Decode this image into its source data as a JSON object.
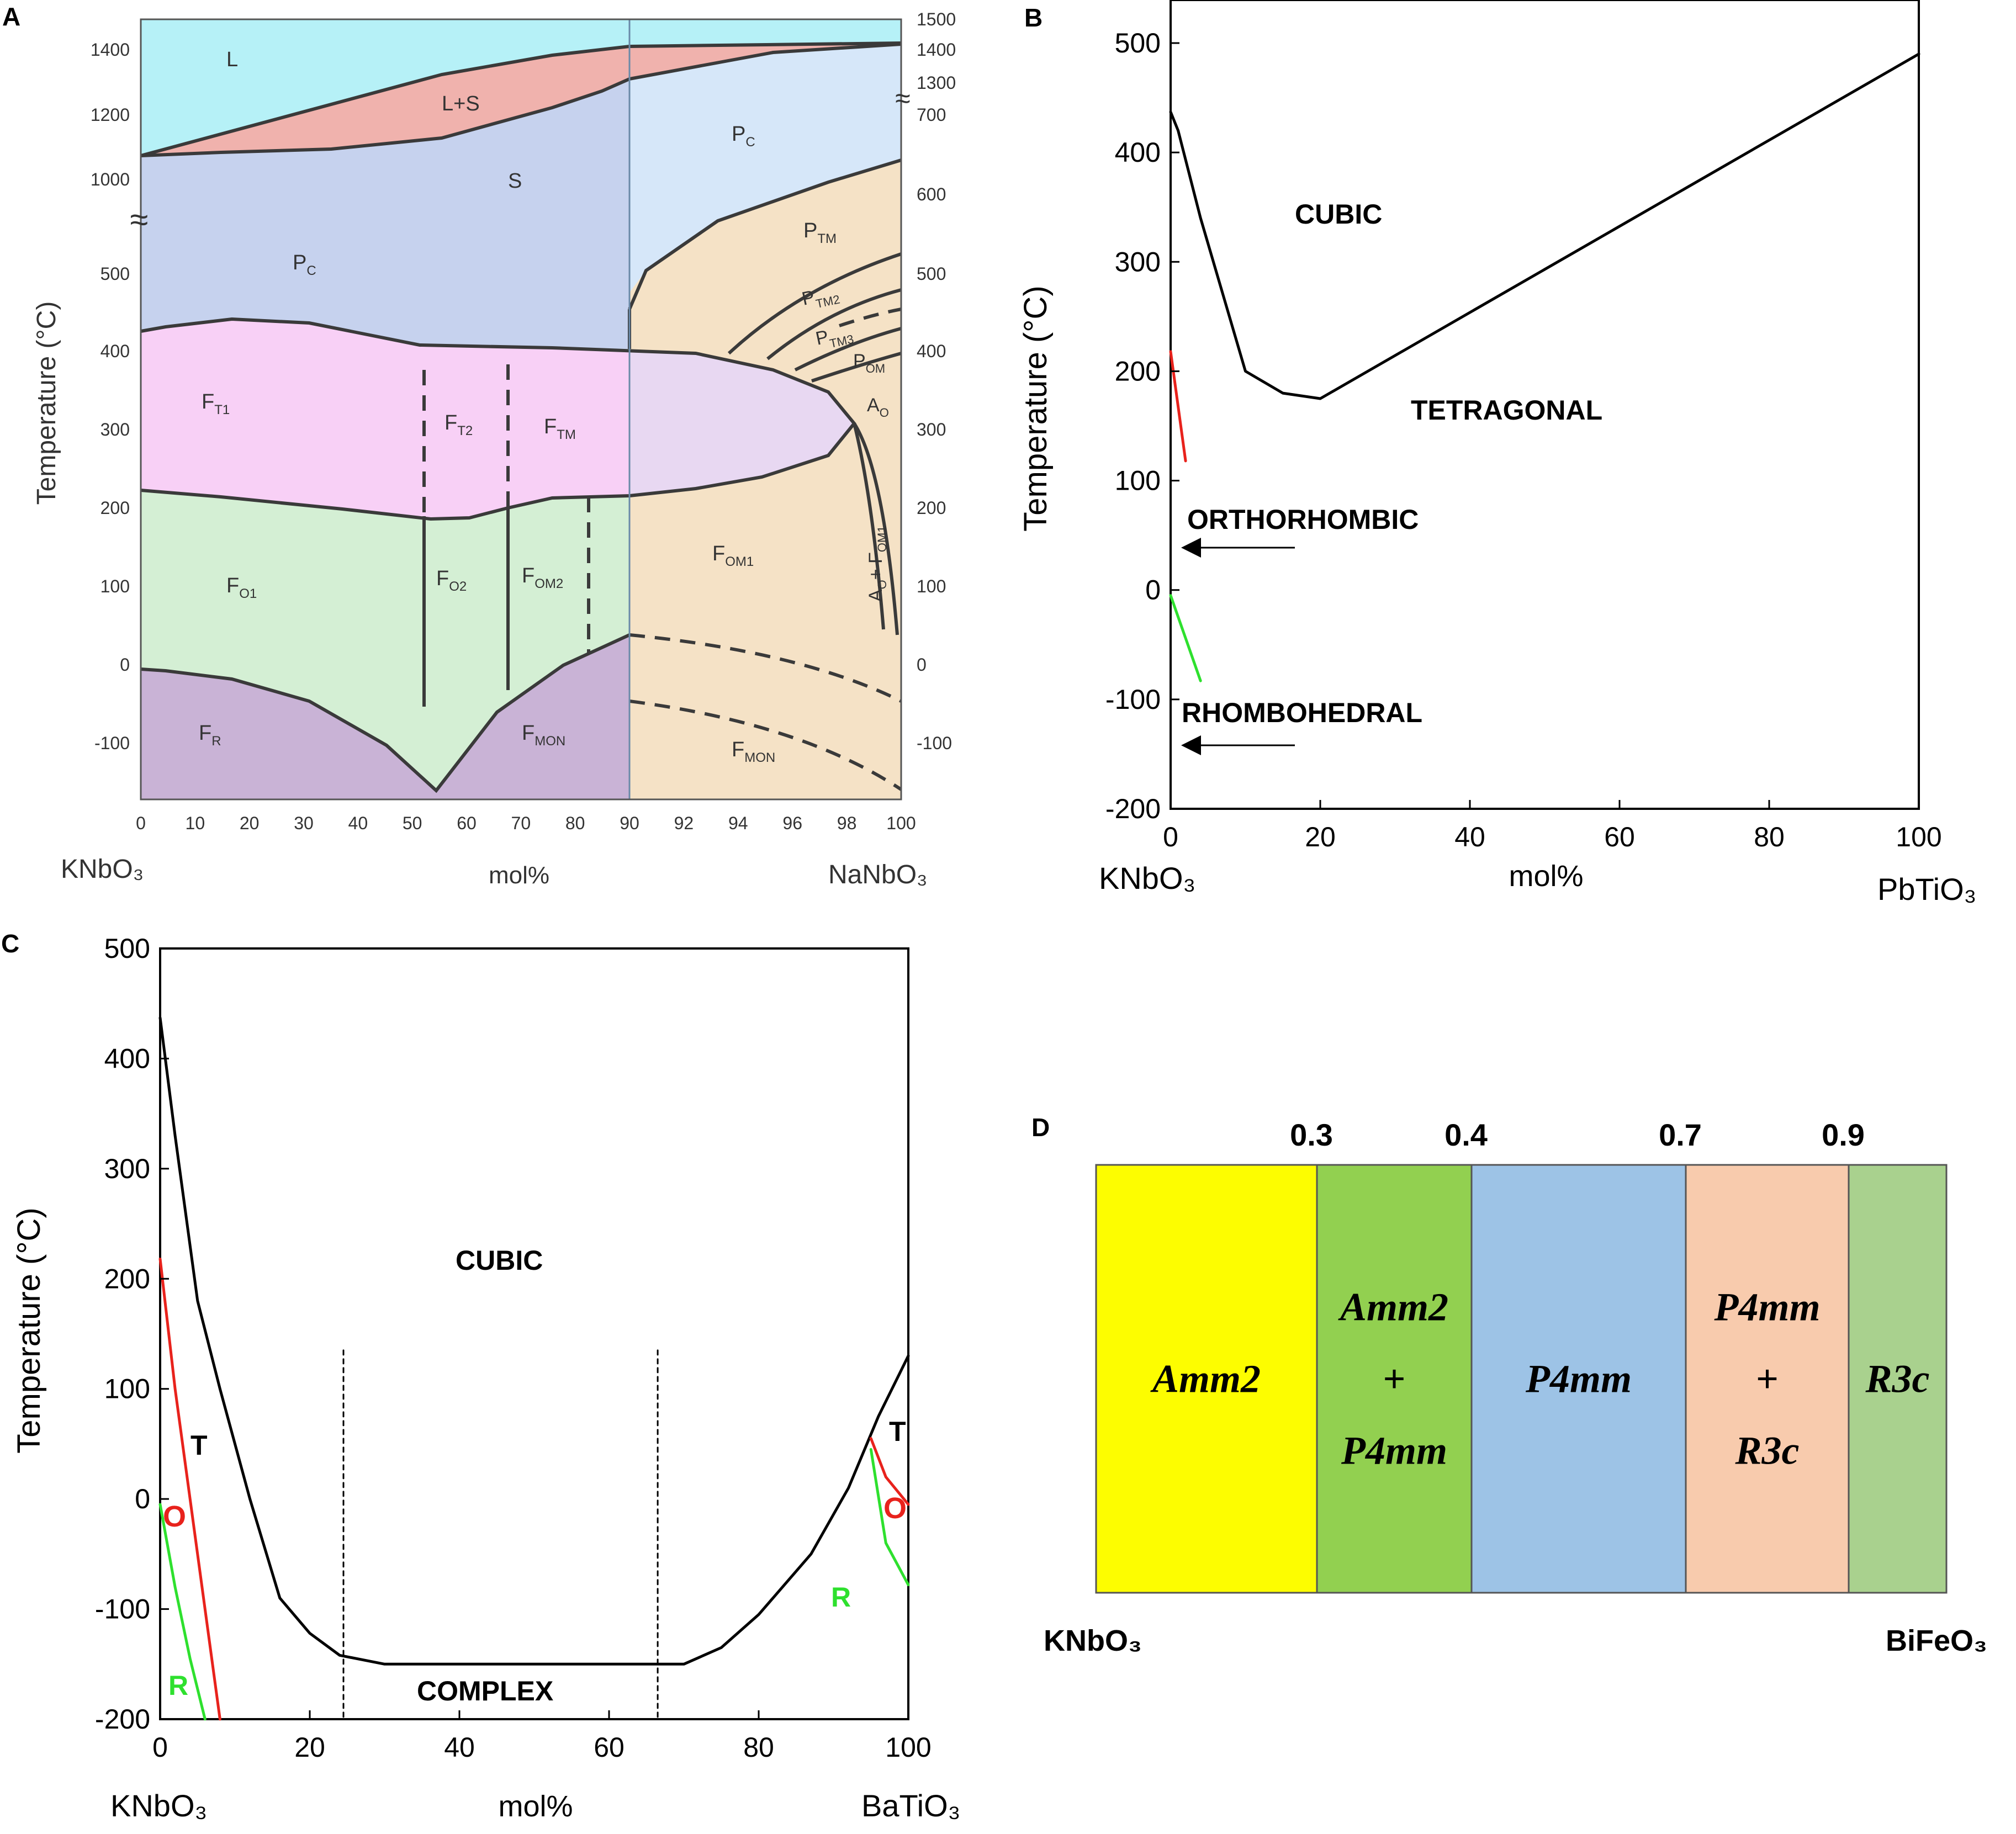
{
  "figure": {
    "panel_letters": [
      "A",
      "B",
      "C",
      "D"
    ]
  },
  "chart_data": [
    {
      "id": "A",
      "type": "area",
      "title": "",
      "ylabel": "Temperature (°C)",
      "xlabel": "mol%",
      "x_end_labels": {
        "left": "KNbO3",
        "right": "NaNbO3"
      },
      "x_ticks_left": [
        "0",
        "10",
        "20",
        "30",
        "40",
        "50",
        "60",
        "70",
        "80",
        "90"
      ],
      "x_ticks_right": [
        "92",
        "94",
        "96",
        "98",
        "100"
      ],
      "y_ticks_left": [
        "1400",
        "1200",
        "1000",
        "500",
        "400",
        "300",
        "200",
        "100",
        "0",
        "-100"
      ],
      "y_ticks_right": [
        "1500",
        "1400",
        "1300",
        "700",
        "600",
        "500",
        "400",
        "300",
        "200",
        "100",
        "0",
        "-100"
      ],
      "break_marks": [
        "≈",
        "≈"
      ],
      "regions": [
        {
          "label": "L",
          "sub": "",
          "color": "#b6f1f7"
        },
        {
          "label": "L+S",
          "sub": "",
          "color": "#f0b2ad"
        },
        {
          "label": "S",
          "sub": "",
          "color": "#c6d2ee"
        },
        {
          "label": "P",
          "sub": "C",
          "color": "#c6d2ee"
        },
        {
          "label": "P",
          "sub": "C",
          "color": "#d6e7f9"
        },
        {
          "label": "P",
          "sub": "TM",
          "color": "#f5e2c6"
        },
        {
          "label": "P",
          "sub": "TM2",
          "color": "#f5e2c6"
        },
        {
          "label": "P",
          "sub": "TM3",
          "color": "#f5e2c6"
        },
        {
          "label": "P",
          "sub": "OM",
          "color": "#f5e2c6"
        },
        {
          "label": "A",
          "sub": "O",
          "color": "#f5e2c6"
        },
        {
          "label": "F",
          "sub": "T1",
          "color": "#f8d0f6"
        },
        {
          "label": "F",
          "sub": "T2",
          "color": "#f8d0f6"
        },
        {
          "label": "F",
          "sub": "TM",
          "color": "#f8d0f6"
        },
        {
          "label": "F",
          "sub": "O1",
          "color": "#d4efd4"
        },
        {
          "label": "F",
          "sub": "O2",
          "color": "#d4efd4"
        },
        {
          "label": "F",
          "sub": "OM2",
          "color": "#d4efd4"
        },
        {
          "label": "F",
          "sub": "OM1",
          "color": "#f5e2c6"
        },
        {
          "label": "A",
          "sub": "O",
          "color": "#f5e2c6"
        },
        {
          "label": "+ F",
          "sub": "OM1",
          "color": "#f5e2c6"
        },
        {
          "label": "F",
          "sub": "R",
          "color": "#c9b3d6"
        },
        {
          "label": "F",
          "sub": "MON",
          "color": "#c9b3d6"
        },
        {
          "label": "F",
          "sub": "MON",
          "color": "#f5e2c6"
        }
      ]
    },
    {
      "id": "B",
      "type": "line",
      "title": "",
      "ylabel": "Temperature (°C)",
      "xlabel": "mol%",
      "x_end_labels": {
        "left": "KNbO3",
        "right": "PbTiO3"
      },
      "xlim": [
        0,
        100
      ],
      "ylim": [
        -200,
        500
      ],
      "x_ticks": [
        0,
        20,
        40,
        60,
        80,
        100
      ],
      "y_ticks": [
        500,
        400,
        300,
        200,
        100,
        0,
        -100,
        -200
      ],
      "series": [
        {
          "name": "Cubic-Tetragonal boundary",
          "color": "#000000",
          "x": [
            0,
            1,
            4,
            10,
            15,
            20,
            100
          ],
          "y": [
            437,
            420,
            340,
            200,
            180,
            175,
            490
          ]
        },
        {
          "name": "T-O boundary",
          "color": "#e8221c",
          "x": [
            0,
            2
          ],
          "y": [
            218,
            118
          ]
        },
        {
          "name": "O-R boundary",
          "color": "#2ee02e",
          "x": [
            0,
            4
          ],
          "y": [
            -5,
            -83
          ]
        }
      ],
      "annotations": [
        "CUBIC",
        "TETRAGONAL",
        "ORTHORHOMBIC",
        "RHOMBOHEDRAL"
      ]
    },
    {
      "id": "C",
      "type": "line",
      "title": "",
      "ylabel": "Temperature (°C)",
      "xlabel": "mol%",
      "x_end_labels": {
        "left": "KNbO3",
        "right": "BaTiO3"
      },
      "xlim": [
        0,
        100
      ],
      "ylim": [
        -200,
        500
      ],
      "x_ticks": [
        0,
        20,
        40,
        60,
        80,
        100
      ],
      "y_ticks": [
        500,
        400,
        300,
        200,
        100,
        0,
        -100,
        -200
      ],
      "series": [
        {
          "name": "Cubic boundary",
          "color": "#000000",
          "x": [
            0,
            2,
            5,
            8,
            12,
            16,
            20,
            24,
            30,
            70,
            75,
            80,
            87,
            92,
            96,
            100
          ],
          "y": [
            437,
            330,
            180,
            100,
            0,
            -90,
            -122,
            -142,
            -150,
            -150,
            -135,
            -105,
            -50,
            10,
            75,
            130
          ]
        },
        {
          "name": "T-O boundary left",
          "color": "#e8221c",
          "x": [
            0,
            2,
            4,
            6,
            8
          ],
          "y": [
            218,
            100,
            0,
            -100,
            -200
          ]
        },
        {
          "name": "O-R boundary left",
          "color": "#2ee02e",
          "x": [
            0,
            2,
            4,
            6
          ],
          "y": [
            -5,
            -80,
            -145,
            -200
          ]
        },
        {
          "name": "T-O boundary right",
          "color": "#e8221c",
          "x": [
            95,
            97,
            100
          ],
          "y": [
            55,
            20,
            -5
          ]
        },
        {
          "name": "O-R boundary right",
          "color": "#2ee02e",
          "x": [
            95,
            97,
            100
          ],
          "y": [
            45,
            -40,
            -78
          ]
        },
        {
          "name": "boundary 25 mol%",
          "color": "#000000",
          "dashed": true,
          "x": [
            24.5,
            24.5
          ],
          "y": [
            135,
            -200
          ]
        },
        {
          "name": "boundary 66 mol%",
          "color": "#000000",
          "dashed": true,
          "x": [
            66.5,
            66.5
          ],
          "y": [
            135,
            -200
          ]
        }
      ],
      "annotations": [
        "CUBIC",
        "T",
        "O",
        "R",
        "COMPLEX",
        "T",
        "O",
        "R"
      ]
    },
    {
      "id": "D",
      "type": "bar",
      "title": "",
      "x_end_labels": {
        "left": "KNbO3",
        "right": "BiFeO3"
      },
      "boundaries": [
        0.3,
        0.4,
        0.7,
        0.9
      ],
      "boundary_labels": [
        "0.3",
        "0.4",
        "0.7",
        "0.9"
      ],
      "segments": [
        {
          "label_lines": [
            "Amm2"
          ],
          "from": 0.0,
          "to": 0.3,
          "color": "#fdfd00"
        },
        {
          "label_lines": [
            "Amm2",
            "+",
            "P4mm"
          ],
          "from": 0.3,
          "to": 0.4,
          "color": "#92d050"
        },
        {
          "label_lines": [
            "P4mm"
          ],
          "from": 0.4,
          "to": 0.7,
          "color": "#9dc3e6"
        },
        {
          "label_lines": [
            "P4mm",
            "+",
            "R3c"
          ],
          "from": 0.7,
          "to": 0.9,
          "color": "#f8cbad"
        },
        {
          "label_lines": [
            "R3c"
          ],
          "from": 0.9,
          "to": 1.0,
          "color": "#a9d18e"
        }
      ]
    }
  ]
}
